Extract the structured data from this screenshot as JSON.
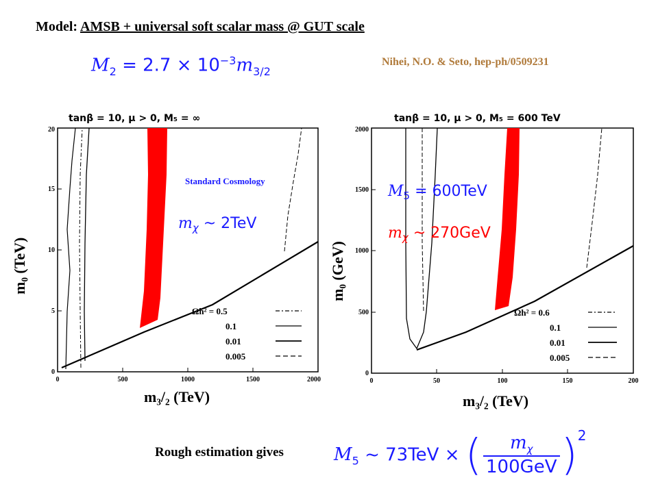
{
  "title": {
    "prefix": "Model: ",
    "model": "AMSB + universal soft scalar mass @ GUT scale"
  },
  "reference": "Nihei, N.O. & Seto, hep-ph/0509231",
  "eq_m2": {
    "lhs": "M",
    "lhs_sub": "2",
    "rhs": " = 2.7 × 10",
    "exp": "−3",
    "m": "m",
    "m_sub": "3/2"
  },
  "left_plot": {
    "header": "tanβ = 10,   μ > 0,   M₅ = ∞",
    "ylabel": "m₀  (TeV)",
    "xlabel": "m₃/₂  (TeV)",
    "xticks": [
      "0",
      "500",
      "1000",
      "1500",
      "2000"
    ],
    "yticks": [
      "0",
      "5",
      "10",
      "15",
      "20"
    ],
    "annotation_cosmology": "Standard Cosmology",
    "annotation_mass": {
      "m": "m",
      "sub": "χ",
      "rest": " ~ 2TeV"
    },
    "legend": {
      "title": "Ωh² = 0.5",
      "items": [
        "0.1",
        "0.01",
        "0.005"
      ]
    }
  },
  "right_plot": {
    "header": "tanβ = 10,   μ > 0,   M₅ = 600 TeV",
    "ylabel": "m₀  (GeV)",
    "xlabel": "m₃/₂  (TeV)",
    "xticks": [
      "0",
      "50",
      "100",
      "150",
      "200"
    ],
    "yticks": [
      "0",
      "500",
      "1000",
      "1500",
      "2000"
    ],
    "annotation_m5": {
      "m": "M",
      "sub": "5",
      "rest": " = 600TeV"
    },
    "annotation_mass": {
      "m": "m",
      "sub": "χ",
      "rest": " ~ 270GeV"
    },
    "legend": {
      "title": "Ωh² = 0.6",
      "items": [
        "0.1",
        "0.01",
        "0.005"
      ]
    }
  },
  "rough_estimation": "Rough estimation gives",
  "eq_bottom": {
    "lhs": "M",
    "lhs_sub": "5",
    "mid": " ~ 73TeV × ",
    "num_m": "m",
    "num_sub": "χ",
    "den": "100GeV",
    "exp": "2"
  },
  "colors": {
    "band": "#ff0000",
    "blue_text": "#1a1aff",
    "red_text": "#ff0000",
    "reference": "#b07a3a"
  }
}
